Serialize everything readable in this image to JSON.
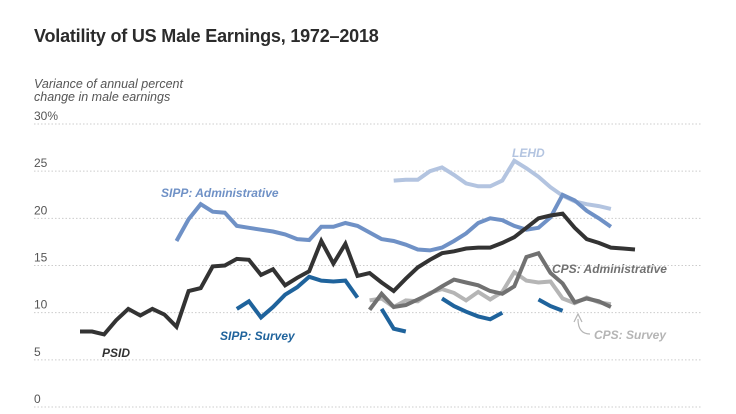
{
  "title": "Volatility of US Male Earnings, 1972–2018",
  "ylabel_line1": "Variance of annual percent",
  "ylabel_line2": "change in male earnings",
  "chart_data": {
    "type": "line",
    "title": "Volatility of US Male Earnings, 1972–2018",
    "ylabel": "Variance of annual percent change in male earnings",
    "ylim": [
      0,
      30
    ],
    "xlim": [
      1972,
      2018
    ],
    "yticks": [
      "30%",
      "25",
      "20",
      "15",
      "10",
      "5",
      "0"
    ],
    "grid": true,
    "colors": {
      "PSID": "#333333",
      "SIPP: Administrative": "#6f91c6",
      "SIPP: Survey": "#1f639c",
      "LEHD": "#b3c4e0",
      "CPS: Administrative": "#717171",
      "CPS: Survey": "#b5b5b5"
    },
    "series": [
      {
        "name": "PSID",
        "segments": [
          [
            [
              1972,
              8.0
            ],
            [
              1973,
              8.0
            ],
            [
              1974,
              7.7
            ],
            [
              1975,
              9.2
            ],
            [
              1976,
              10.4
            ],
            [
              1977,
              9.7
            ],
            [
              1978,
              10.4
            ],
            [
              1979,
              9.8
            ],
            [
              1980,
              8.5
            ],
            [
              1981,
              12.3
            ],
            [
              1982,
              12.6
            ],
            [
              1983,
              14.9
            ],
            [
              1984,
              15.0
            ],
            [
              1985,
              15.7
            ],
            [
              1986,
              15.6
            ],
            [
              1987,
              14.0
            ],
            [
              1988,
              14.6
            ],
            [
              1989,
              12.9
            ],
            [
              1990,
              13.7
            ],
            [
              1991,
              14.4
            ],
            [
              1992,
              17.6
            ],
            [
              1993,
              15.2
            ],
            [
              1994,
              17.3
            ],
            [
              1995,
              13.9
            ],
            [
              1996,
              14.2
            ],
            [
              1997,
              13.2
            ],
            [
              1998,
              12.3
            ],
            [
              1999,
              13.6
            ],
            [
              2000,
              14.8
            ],
            [
              2001,
              15.6
            ],
            [
              2002,
              16.3
            ],
            [
              2003,
              16.5
            ],
            [
              2004,
              16.8
            ],
            [
              2005,
              16.9
            ],
            [
              2006,
              16.9
            ],
            [
              2007,
              17.4
            ],
            [
              2008,
              18.0
            ],
            [
              2009,
              19.0
            ],
            [
              2010,
              20.0
            ],
            [
              2011,
              20.3
            ],
            [
              2012,
              20.5
            ],
            [
              2013,
              19.0
            ],
            [
              2014,
              17.8
            ],
            [
              2015,
              17.4
            ],
            [
              2016,
              16.9
            ],
            [
              2017,
              16.8
            ],
            [
              2018,
              16.7
            ]
          ]
        ]
      },
      {
        "name": "SIPP: Administrative",
        "segments": [
          [
            [
              1980,
              17.6
            ],
            [
              1981,
              19.9
            ],
            [
              1982,
              21.5
            ],
            [
              1983,
              20.7
            ],
            [
              1984,
              20.6
            ],
            [
              1985,
              19.2
            ],
            [
              1986,
              19.0
            ],
            [
              1987,
              18.8
            ],
            [
              1988,
              18.6
            ],
            [
              1989,
              18.3
            ],
            [
              1990,
              17.8
            ],
            [
              1991,
              17.7
            ],
            [
              1992,
              19.1
            ],
            [
              1993,
              19.1
            ],
            [
              1994,
              19.5
            ],
            [
              1995,
              19.2
            ],
            [
              1996,
              18.5
            ],
            [
              1997,
              17.8
            ],
            [
              1998,
              17.6
            ],
            [
              1999,
              17.2
            ],
            [
              2000,
              16.7
            ],
            [
              2001,
              16.6
            ],
            [
              2002,
              16.9
            ],
            [
              2003,
              17.6
            ],
            [
              2004,
              18.4
            ],
            [
              2005,
              19.5
            ],
            [
              2006,
              20.0
            ],
            [
              2007,
              19.8
            ],
            [
              2008,
              19.2
            ],
            [
              2009,
              18.8
            ],
            [
              2010,
              19.0
            ],
            [
              2011,
              20.1
            ],
            [
              2012,
              22.5
            ],
            [
              2013,
              21.9
            ],
            [
              2014,
              20.8
            ],
            [
              2015,
              20.0
            ],
            [
              2016,
              19.1
            ]
          ]
        ]
      },
      {
        "name": "SIPP: Survey",
        "segments": [
          [
            [
              1985,
              10.4
            ],
            [
              1986,
              11.2
            ],
            [
              1987,
              9.5
            ],
            [
              1988,
              10.6
            ],
            [
              1989,
              11.9
            ],
            [
              1990,
              12.7
            ],
            [
              1991,
              13.8
            ],
            [
              1992,
              13.4
            ],
            [
              1993,
              13.3
            ],
            [
              1994,
              13.4
            ],
            [
              1995,
              11.6
            ]
          ],
          [
            [
              1997,
              10.4
            ],
            [
              1998,
              8.3
            ],
            [
              1999,
              8.0
            ]
          ],
          [
            [
              2002,
              11.5
            ],
            [
              2003,
              10.7
            ],
            [
              2004,
              10.1
            ],
            [
              2005,
              9.6
            ],
            [
              2006,
              9.3
            ],
            [
              2007,
              10.0
            ]
          ],
          [
            [
              2010,
              11.4
            ],
            [
              2011,
              10.7
            ],
            [
              2012,
              10.2
            ]
          ]
        ]
      },
      {
        "name": "LEHD",
        "segments": [
          [
            [
              1998,
              24.0
            ],
            [
              1999,
              24.1
            ],
            [
              2000,
              24.1
            ],
            [
              2001,
              25.0
            ],
            [
              2002,
              25.4
            ],
            [
              2003,
              24.6
            ],
            [
              2004,
              23.7
            ],
            [
              2005,
              23.4
            ],
            [
              2006,
              23.4
            ],
            [
              2007,
              24.0
            ],
            [
              2008,
              26.1
            ],
            [
              2009,
              25.3
            ],
            [
              2010,
              24.4
            ],
            [
              2011,
              23.3
            ],
            [
              2012,
              22.4
            ],
            [
              2013,
              21.8
            ],
            [
              2014,
              21.5
            ],
            [
              2015,
              21.3
            ],
            [
              2016,
              21.0
            ]
          ]
        ]
      },
      {
        "name": "CPS: Administrative",
        "segments": [
          [
            [
              1996,
              10.3
            ],
            [
              1997,
              12.0
            ],
            [
              1998,
              10.6
            ],
            [
              1999,
              10.8
            ],
            [
              2000,
              11.4
            ],
            [
              2001,
              12.0
            ],
            [
              2002,
              12.8
            ],
            [
              2003,
              13.5
            ],
            [
              2004,
              13.2
            ],
            [
              2005,
              12.9
            ],
            [
              2006,
              12.3
            ],
            [
              2007,
              12.0
            ],
            [
              2008,
              12.8
            ],
            [
              2009,
              15.9
            ],
            [
              2010,
              16.3
            ],
            [
              2011,
              14.2
            ],
            [
              2012,
              13.1
            ],
            [
              2013,
              11.1
            ],
            [
              2014,
              11.5
            ],
            [
              2015,
              11.2
            ],
            [
              2016,
              10.6
            ]
          ]
        ]
      },
      {
        "name": "CPS: Survey",
        "segments": [
          [
            [
              1996,
              11.3
            ],
            [
              1997,
              11.5
            ],
            [
              1998,
              10.6
            ],
            [
              1999,
              11.3
            ],
            [
              2000,
              11.2
            ],
            [
              2001,
              12.1
            ],
            [
              2002,
              12.5
            ],
            [
              2003,
              12.1
            ],
            [
              2004,
              11.3
            ],
            [
              2005,
              12.2
            ],
            [
              2006,
              11.4
            ],
            [
              2007,
              12.2
            ],
            [
              2008,
              14.3
            ],
            [
              2009,
              13.4
            ],
            [
              2010,
              13.2
            ],
            [
              2011,
              13.3
            ],
            [
              2012,
              11.5
            ],
            [
              2013,
              11.0
            ],
            [
              2014,
              11.6
            ],
            [
              2015,
              11.1
            ],
            [
              2016,
              10.9
            ]
          ]
        ]
      }
    ],
    "labels": [
      {
        "text": "PSID",
        "series": "PSID"
      },
      {
        "text": "SIPP: Administrative",
        "series": "SIPP: Administrative"
      },
      {
        "text": "SIPP: Survey",
        "series": "SIPP: Survey"
      },
      {
        "text": "LEHD",
        "series": "LEHD"
      },
      {
        "text": "CPS: Administrative",
        "series": "CPS: Administrative"
      },
      {
        "text": "CPS: Survey",
        "series": "CPS: Survey"
      }
    ]
  }
}
